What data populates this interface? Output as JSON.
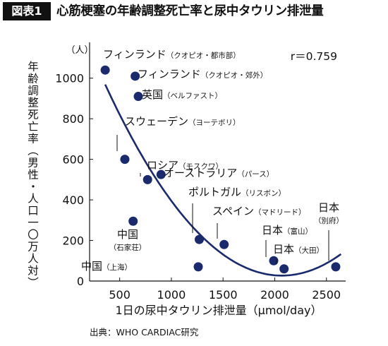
{
  "header": {
    "badge": "図表1",
    "title": "心筋梗塞の年齢調整死亡率と尿中タウリン排泄量"
  },
  "source": "出典：WHO CARDIAC研究",
  "chart_data": {
    "type": "scatter",
    "title": "",
    "xlabel": "1日の尿中タウリン排泄量（μmol/day）",
    "ylabel": "年齢調整死亡率（男性・人口一〇万人対）",
    "y_unit": "（人）",
    "xlim": [
      200,
      2700
    ],
    "ylim": [
      0,
      1100
    ],
    "x_ticks": [
      500,
      1000,
      1500,
      2000,
      2500
    ],
    "y_ticks": [
      0,
      200,
      400,
      600,
      800,
      1000
    ],
    "grid": false,
    "annotation": "r＝0.759",
    "point_color": "#1a2a6c",
    "curve_color": "#1a2a6c",
    "points": [
      {
        "x": 360,
        "y": 1040,
        "label": "フィンランド",
        "sub": "（クオピオ・都市部）"
      },
      {
        "x": 650,
        "y": 1010,
        "label": "フィンランド",
        "sub": "（クオピオ・郊外）"
      },
      {
        "x": 680,
        "y": 910,
        "label": "英国",
        "sub": "（ベルファスト）"
      },
      {
        "x": 550,
        "y": 600,
        "label": "スウェーデン",
        "sub": "（ヨーテボリ）"
      },
      {
        "x": 770,
        "y": 500,
        "label": "ロシア",
        "sub": "（モスクワ）"
      },
      {
        "x": 900,
        "y": 525,
        "label": "オーストラリア",
        "sub": "（パース）"
      },
      {
        "x": 1270,
        "y": 205,
        "label": "ポルトガル",
        "sub": "（リスボン）"
      },
      {
        "x": 1510,
        "y": 180,
        "label": "スペイン",
        "sub": "（マドリード）"
      },
      {
        "x": 630,
        "y": 295,
        "label": "中国",
        "sub": "（石家荘）"
      },
      {
        "x": 1260,
        "y": 70,
        "label": "中国",
        "sub": "（上海）"
      },
      {
        "x": 1990,
        "y": 100,
        "label": "日本",
        "sub": "（富山）"
      },
      {
        "x": 2090,
        "y": 60,
        "label": "日本",
        "sub": "（大田）"
      },
      {
        "x": 2590,
        "y": 70,
        "label": "日本",
        "sub": "（別府）"
      }
    ],
    "trend": {
      "type": "quadratic-fit"
    }
  }
}
